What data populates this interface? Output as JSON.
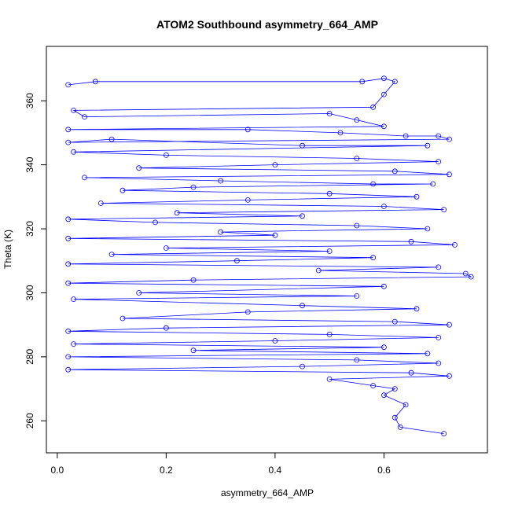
{
  "chart_data": {
    "type": "scatter",
    "title": "ATOM2 Southbound asymmetry_664_AMP",
    "xlabel": "asymmetry_664_AMP",
    "ylabel": "Theta (K)",
    "xlim": [
      -0.02,
      0.79
    ],
    "ylim": [
      250,
      377
    ],
    "xticks": [
      0.0,
      0.2,
      0.4,
      0.6
    ],
    "xtick_labels": [
      "0.0",
      "0.2",
      "0.4",
      "0.6"
    ],
    "yticks": [
      260,
      280,
      300,
      320,
      340,
      360
    ],
    "ytick_labels": [
      "260",
      "280",
      "300",
      "320",
      "340",
      "360"
    ],
    "grid": false,
    "connected": true,
    "marker": "open-circle",
    "color": "#0000ff",
    "series": [
      {
        "x": [
          0.02,
          0.07,
          0.56,
          0.6,
          0.62,
          0.6,
          0.58,
          0.03,
          0.05,
          0.5,
          0.55,
          0.6,
          0.02,
          0.35,
          0.52,
          0.64,
          0.7,
          0.72,
          0.02,
          0.1,
          0.45,
          0.68,
          0.03,
          0.2,
          0.55,
          0.7,
          0.4,
          0.15,
          0.62,
          0.72,
          0.05,
          0.3,
          0.58,
          0.69,
          0.25,
          0.12,
          0.5,
          0.66,
          0.35,
          0.08,
          0.6,
          0.71,
          0.22,
          0.45,
          0.02,
          0.18,
          0.55,
          0.68,
          0.3,
          0.4,
          0.02,
          0.65,
          0.73,
          0.2,
          0.5,
          0.1,
          0.58,
          0.33,
          0.02,
          0.7,
          0.48,
          0.75,
          0.76,
          0.25,
          0.02,
          0.6,
          0.15,
          0.55,
          0.03,
          0.45,
          0.66,
          0.35,
          0.12,
          0.62,
          0.72,
          0.2,
          0.02,
          0.5,
          0.7,
          0.4,
          0.03,
          0.6,
          0.25,
          0.68,
          0.02,
          0.55,
          0.7,
          0.45,
          0.02,
          0.65,
          0.72,
          0.5,
          0.58,
          0.62,
          0.6,
          0.64,
          0.62,
          0.63,
          0.71
        ],
        "y": [
          365,
          366,
          366,
          367,
          366,
          362,
          358,
          357,
          355,
          356,
          354,
          352,
          351,
          351,
          350,
          349,
          349,
          348,
          347,
          348,
          346,
          346,
          344,
          343,
          342,
          341,
          340,
          339,
          338,
          337,
          336,
          335,
          334,
          334,
          333,
          332,
          331,
          330,
          329,
          328,
          327,
          326,
          325,
          324,
          323,
          322,
          321,
          320,
          319,
          318,
          317,
          316,
          315,
          314,
          313,
          312,
          311,
          310,
          309,
          308,
          307,
          306,
          305,
          304,
          303,
          302,
          300,
          299,
          298,
          296,
          295,
          294,
          292,
          291,
          290,
          289,
          288,
          287,
          286,
          285,
          284,
          283,
          282,
          281,
          280,
          279,
          278,
          277,
          276,
          275,
          274,
          273,
          271,
          270,
          268,
          265,
          261,
          258,
          256
        ]
      }
    ]
  }
}
